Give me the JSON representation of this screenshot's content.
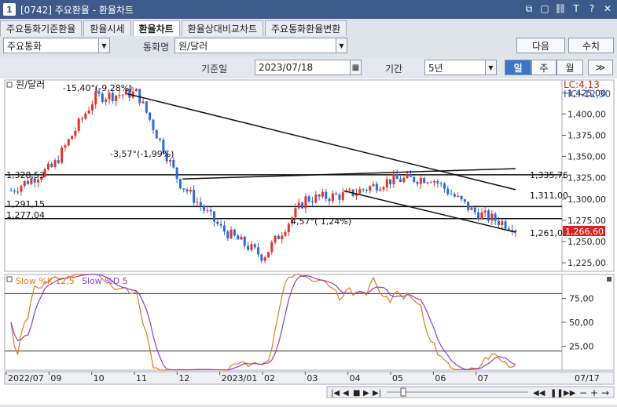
{
  "window": {
    "number": "1",
    "title": "[0742] 주요환율 - 환율차트",
    "controls": [
      "copy-icon",
      "window-icon",
      "link-icon",
      "text-icon",
      "help-icon",
      "close-icon"
    ]
  },
  "tabs": [
    {
      "label": "주요통화기준환율",
      "active": false
    },
    {
      "label": "환율시세",
      "active": false
    },
    {
      "label": "환율차트",
      "active": true
    },
    {
      "label": "환율상대비교차트",
      "active": false
    },
    {
      "label": "주요통화환율변환",
      "active": false
    }
  ],
  "controls": {
    "category_value": "주요통화",
    "currency_label": "통화명",
    "currency_value": "원/달러",
    "next_button": "다음",
    "value_button": "수치",
    "base_date_label": "기준일",
    "base_date_value": "2023/07/18",
    "period_label": "기간",
    "period_value": "5년",
    "period_buttons": [
      {
        "label": "일",
        "active": true
      },
      {
        "label": "주",
        "active": false
      },
      {
        "label": "월",
        "active": false
      }
    ],
    "more_button": "≫"
  },
  "chart": {
    "main_label": "원/달러",
    "lc_label": "LC:4,13",
    "hc_label": "HC:-12,30",
    "current_price": "1,266,60",
    "y_ticks": [
      "1,425,00",
      "1,400,00",
      "1,375,00",
      "1,350,00",
      "1,325,00",
      "1,300,00",
      "1,275,00",
      "1,250,00",
      "1,225,00"
    ],
    "left_levels": [
      "1,328,53",
      "1,291,15",
      "1,277,04"
    ],
    "trend_labels": [
      "1,335,76",
      "1,311,00",
      "1,261,0"
    ],
    "annotations": [
      "-15,40°(-9,28%)",
      "-3,57°(-1,99%)",
      "4,57°( 1,24%)"
    ],
    "stoch_label_k": "Slow %K 12,5",
    "stoch_label_d": "Slow %D 5",
    "stoch_ticks": [
      "75,00",
      "50,00",
      "25,00"
    ],
    "x_labels": [
      "2022/07",
      "09",
      "10",
      "11",
      "12",
      "2023/01",
      "02",
      "03",
      "04",
      "05",
      "06",
      "07"
    ],
    "x_end_label": "07/17",
    "colors": {
      "up": "#e2342d",
      "down": "#2e6bd6",
      "k": "#e27a1d",
      "d": "#8a3fc8"
    }
  },
  "chart_data": {
    "type": "candlestick",
    "title": "원/달러",
    "x_range": [
      "2022/07",
      "2023/07/17"
    ],
    "ylim": [
      1215,
      1440
    ],
    "y_ticks": [
      1425,
      1400,
      1375,
      1350,
      1325,
      1300,
      1275,
      1250,
      1225
    ],
    "monthly_closes": [
      {
        "month": "2022/07",
        "value": 1310
      },
      {
        "month": "2022/08",
        "value": 1338
      },
      {
        "month": "2022/09",
        "value": 1420
      },
      {
        "month": "2022/10",
        "value": 1425
      },
      {
        "month": "2022/11",
        "value": 1320
      },
      {
        "month": "2022/12",
        "value": 1265
      },
      {
        "month": "2023/01",
        "value": 1232
      },
      {
        "month": "2023/02",
        "value": 1300
      },
      {
        "month": "2023/03",
        "value": 1305
      },
      {
        "month": "2023/04",
        "value": 1322
      },
      {
        "month": "2023/05",
        "value": 1325
      },
      {
        "month": "2023/06",
        "value": 1285
      },
      {
        "month": "2023/07",
        "value": 1266.6
      }
    ],
    "horizontal_levels": [
      1328.53,
      1291.15,
      1277.04
    ],
    "trend_endpoints": [
      1335.76,
      1311.0,
      1261.0
    ],
    "stochastic": {
      "k_period_label": "Slow %K 12,5",
      "d_period_label": "Slow %D 5",
      "levels": [
        80,
        20
      ],
      "ylim": [
        0,
        100
      ]
    }
  }
}
